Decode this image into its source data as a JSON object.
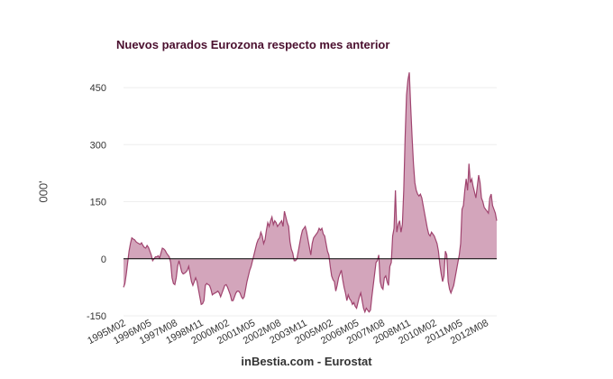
{
  "chart_data": {
    "type": "area",
    "title": "Nuevos parados Eurozona respecto mes anterior",
    "ylabel": "'000",
    "xlabel": "",
    "source": "inBestia.com - Eurostat",
    "ylim": [
      -150,
      500
    ],
    "yticks": [
      -150,
      0,
      150,
      300,
      450
    ],
    "xticks": [
      "1995M02",
      "1996M05",
      "1997M08",
      "1998M11",
      "2000M02",
      "2001M05",
      "2002M08",
      "2003M11",
      "2005M02",
      "2006M05",
      "2007M08",
      "2008M11",
      "2010M02",
      "2011M05",
      "2012M08"
    ],
    "grid": true,
    "legend": "none",
    "colors": {
      "fill": "#d3a5bb",
      "line": "#a0446f",
      "zero": "#000000",
      "grid": "#eeeeee",
      "title": "#4a0f2e"
    },
    "x_start": "1995M02",
    "x_end": "2013M02",
    "series": [
      {
        "values": [
          -75,
          -65,
          -40,
          -10,
          20,
          40,
          55,
          52,
          50,
          45,
          42,
          40,
          38,
          42,
          35,
          30,
          28,
          35,
          30,
          20,
          10,
          -5,
          0,
          5,
          5,
          8,
          2,
          15,
          28,
          26,
          22,
          15,
          10,
          5,
          -10,
          -50,
          -65,
          -68,
          -50,
          -20,
          -5,
          -20,
          -35,
          -40,
          -38,
          -35,
          -30,
          -20,
          -40,
          -60,
          -70,
          -60,
          -50,
          -60,
          -80,
          -100,
          -120,
          -118,
          -110,
          -70,
          -65,
          -68,
          -70,
          -80,
          -95,
          -92,
          -90,
          -88,
          -85,
          -90,
          -100,
          -90,
          -80,
          -70,
          -68,
          -75,
          -85,
          -95,
          -110,
          -110,
          -100,
          -90,
          -85,
          -85,
          -90,
          -100,
          -105,
          -100,
          -80,
          -60,
          -45,
          -30,
          -20,
          -5,
          10,
          25,
          40,
          50,
          55,
          70,
          60,
          40,
          50,
          75,
          95,
          85,
          100,
          110,
          90,
          100,
          95,
          85,
          90,
          95,
          100,
          85,
          125,
          110,
          95,
          85,
          45,
          25,
          15,
          -5,
          -5,
          0,
          20,
          40,
          60,
          75,
          80,
          85,
          70,
          50,
          30,
          10,
          40,
          55,
          60,
          65,
          70,
          80,
          75,
          80,
          65,
          60,
          40,
          20,
          10,
          -20,
          -45,
          -55,
          -60,
          -85,
          -70,
          -50,
          -40,
          -30,
          -55,
          -75,
          -90,
          -110,
          -95,
          -105,
          -110,
          -120,
          -115,
          -125,
          -130,
          -115,
          -100,
          -90,
          -110,
          -130,
          -140,
          -130,
          -135,
          -140,
          -135,
          -100,
          -70,
          -40,
          -10,
          -5,
          10,
          -60,
          -75,
          -80,
          -50,
          -45,
          -60,
          -70,
          -20,
          -10,
          60,
          80,
          180,
          70,
          90,
          100,
          70,
          90,
          180,
          320,
          430,
          470,
          490,
          400,
          320,
          250,
          200,
          180,
          170,
          165,
          170,
          160,
          140,
          120,
          100,
          80,
          65,
          60,
          70,
          65,
          60,
          50,
          40,
          20,
          -15,
          -40,
          -60,
          -45,
          20,
          10,
          -60,
          -80,
          -90,
          -80,
          -70,
          -50,
          -30,
          -10,
          10,
          40,
          130,
          140,
          180,
          210,
          180,
          250,
          200,
          210,
          190,
          175,
          160,
          190,
          220,
          200,
          160,
          150,
          135,
          130,
          125,
          120,
          160,
          170,
          140,
          130,
          120,
          100
        ]
      }
    ]
  }
}
